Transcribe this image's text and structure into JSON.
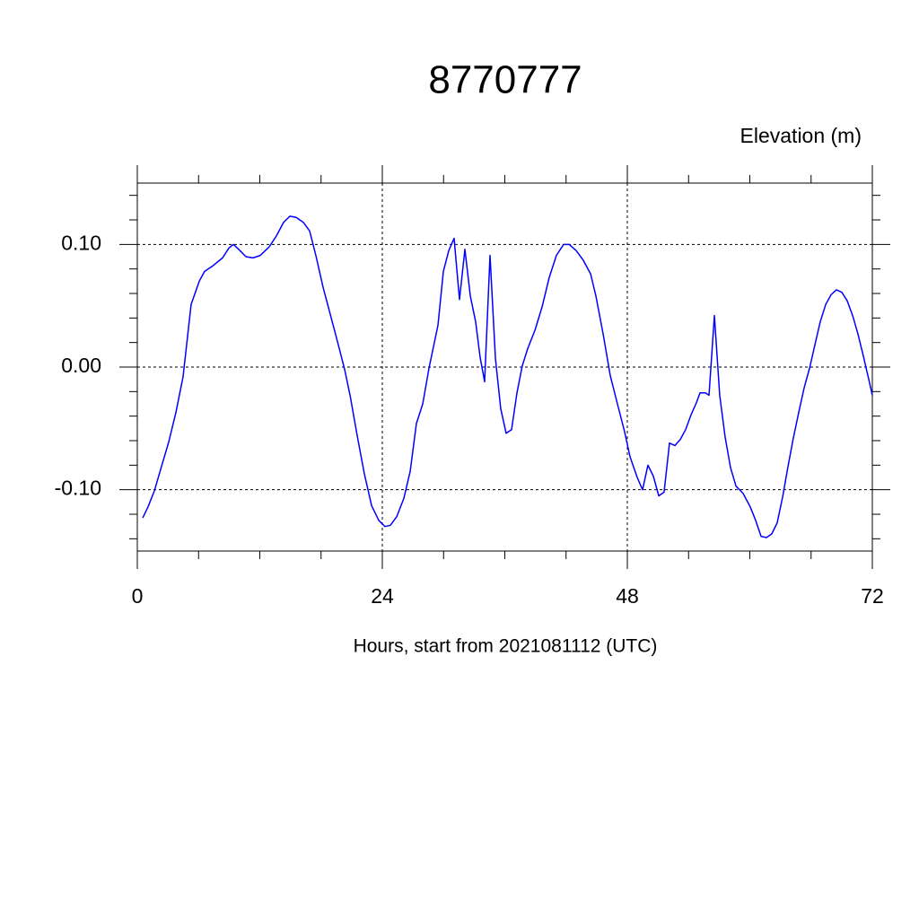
{
  "chart_data": {
    "type": "line",
    "title": "8770777",
    "subtitle": "Elevation (m)",
    "x_label": "Hours, start from 2021081112 (UTC)",
    "xlim": [
      0,
      72
    ],
    "xticks": [
      0,
      24,
      48,
      72
    ],
    "x_minor_ticks": [
      6,
      12,
      18,
      30,
      36,
      42,
      54,
      60,
      66
    ],
    "ylim": [
      -0.15,
      0.15
    ],
    "yticks": [
      {
        "value": -0.1,
        "label": "-0.10"
      },
      {
        "value": 0,
        "label": "0.00"
      },
      {
        "value": 0.1,
        "label": "0.10"
      }
    ],
    "y_minor_ticks": [
      -0.14,
      -0.12,
      -0.08,
      -0.06,
      -0.04,
      -0.02,
      0.02,
      0.04,
      0.06,
      0.08,
      0.12,
      0.14
    ],
    "grid": true,
    "series": [
      {
        "color": "#0000ff",
        "x": [
          0.53,
          1.05,
          1.67,
          2.37,
          3.08,
          3.78,
          4.48,
          5.27,
          6.07,
          6.59,
          7.47,
          8.35,
          8.97,
          9.41,
          9.93,
          10.64,
          11.34,
          12.04,
          12.92,
          13.63,
          14.33,
          14.95,
          15.56,
          16.26,
          16.88,
          17.49,
          18.2,
          18.9,
          19.6,
          20.31,
          20.84,
          21.54,
          22.24,
          22.95,
          23.65,
          24.26,
          24.79,
          25.41,
          26.11,
          26.73,
          27.34,
          27.96,
          28.57,
          29.45,
          29.98,
          30.51,
          31.03,
          31.56,
          32.09,
          32.62,
          33.14,
          33.58,
          34.02,
          34.55,
          35.08,
          35.6,
          36.13,
          36.66,
          37.19,
          37.71,
          38.24,
          38.95,
          39.65,
          40.35,
          41.05,
          41.76,
          42.29,
          42.99,
          43.69,
          44.4,
          44.92,
          45.63,
          46.33,
          47.03,
          47.74,
          48.26,
          48.97,
          49.49,
          50.02,
          50.55,
          51.08,
          51.6,
          52.13,
          52.66,
          53.19,
          53.71,
          54.24,
          54.77,
          55.12,
          55.65,
          56.0,
          56.53,
          57.05,
          57.58,
          58.11,
          58.64,
          59.34,
          60.04,
          60.57,
          61.1,
          61.63,
          62.15,
          62.68,
          63.21,
          63.74,
          64.26,
          64.79,
          65.32,
          65.85,
          66.37,
          66.9,
          67.43,
          67.96,
          68.48,
          69.01,
          69.54,
          70.07,
          70.59,
          71.12,
          71.65,
          72.0
        ],
        "values": [
          -0.123,
          -0.114,
          -0.101,
          -0.081,
          -0.061,
          -0.037,
          -0.008,
          0.051,
          0.07,
          0.078,
          0.083,
          0.089,
          0.097,
          0.1,
          0.096,
          0.09,
          0.089,
          0.091,
          0.098,
          0.107,
          0.118,
          0.123,
          0.122,
          0.118,
          0.111,
          0.091,
          0.065,
          0.043,
          0.021,
          -0.002,
          -0.023,
          -0.056,
          -0.087,
          -0.113,
          -0.125,
          -0.13,
          -0.129,
          -0.122,
          -0.107,
          -0.085,
          -0.046,
          -0.03,
          -0.001,
          0.034,
          0.078,
          0.095,
          0.105,
          0.055,
          0.096,
          0.058,
          0.037,
          0.008,
          -0.012,
          0.091,
          0.007,
          -0.034,
          -0.054,
          -0.051,
          -0.021,
          0.001,
          0.015,
          0.03,
          0.049,
          0.073,
          0.091,
          0.1,
          0.1,
          0.095,
          0.087,
          0.076,
          0.058,
          0.027,
          -0.007,
          -0.03,
          -0.053,
          -0.073,
          -0.09,
          -0.1,
          -0.08,
          -0.089,
          -0.105,
          -0.102,
          -0.062,
          -0.064,
          -0.059,
          -0.051,
          -0.039,
          -0.029,
          -0.021,
          -0.021,
          -0.023,
          0.042,
          -0.023,
          -0.057,
          -0.082,
          -0.097,
          -0.103,
          -0.114,
          -0.125,
          -0.138,
          -0.139,
          -0.136,
          -0.127,
          -0.106,
          -0.081,
          -0.058,
          -0.037,
          -0.017,
          -0.001,
          0.018,
          0.037,
          0.051,
          0.059,
          0.063,
          0.061,
          0.054,
          0.042,
          0.027,
          0.009,
          -0.01,
          -0.023
        ]
      }
    ]
  }
}
